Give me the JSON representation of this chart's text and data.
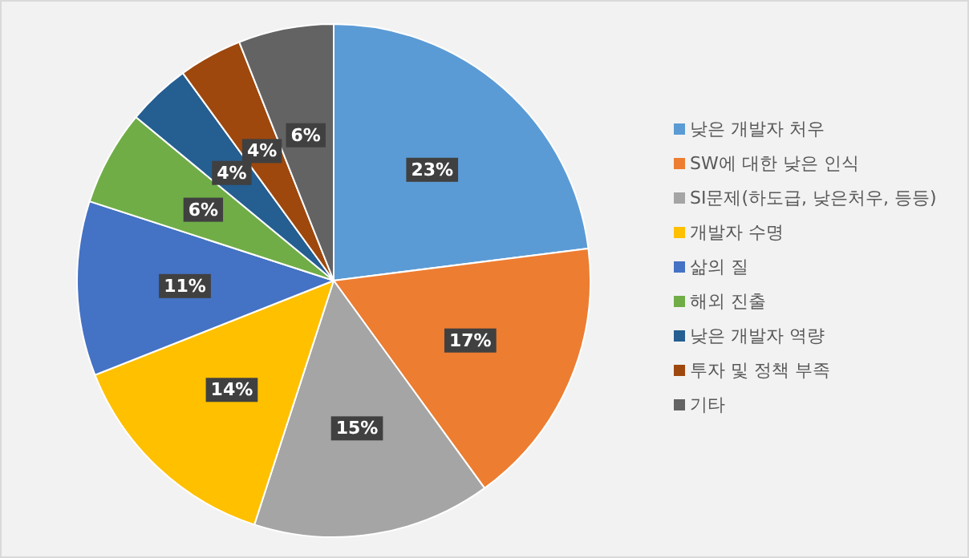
{
  "chart_data": {
    "type": "pie",
    "categories": [
      "낮은 개발자 처우",
      "SW에 대한 낮은 인식",
      "SI문제(하도급, 낮은처우, 등등)",
      "개발자 수명",
      "삶의 질",
      "해외 진출",
      "낮은 개발자 역량",
      "투자 및 정책 부족",
      "기타"
    ],
    "values": [
      23,
      17,
      15,
      14,
      11,
      6,
      4,
      4,
      6
    ],
    "colors": [
      "#5b9bd5",
      "#ed7d31",
      "#a5a5a5",
      "#ffc000",
      "#4472c4",
      "#70ad47",
      "#255e91",
      "#9e480e",
      "#636363"
    ],
    "value_labels": [
      "23%",
      "17%",
      "15%",
      "14%",
      "11%",
      "6%",
      "4%",
      "4%",
      "6%"
    ],
    "legend": "right"
  }
}
